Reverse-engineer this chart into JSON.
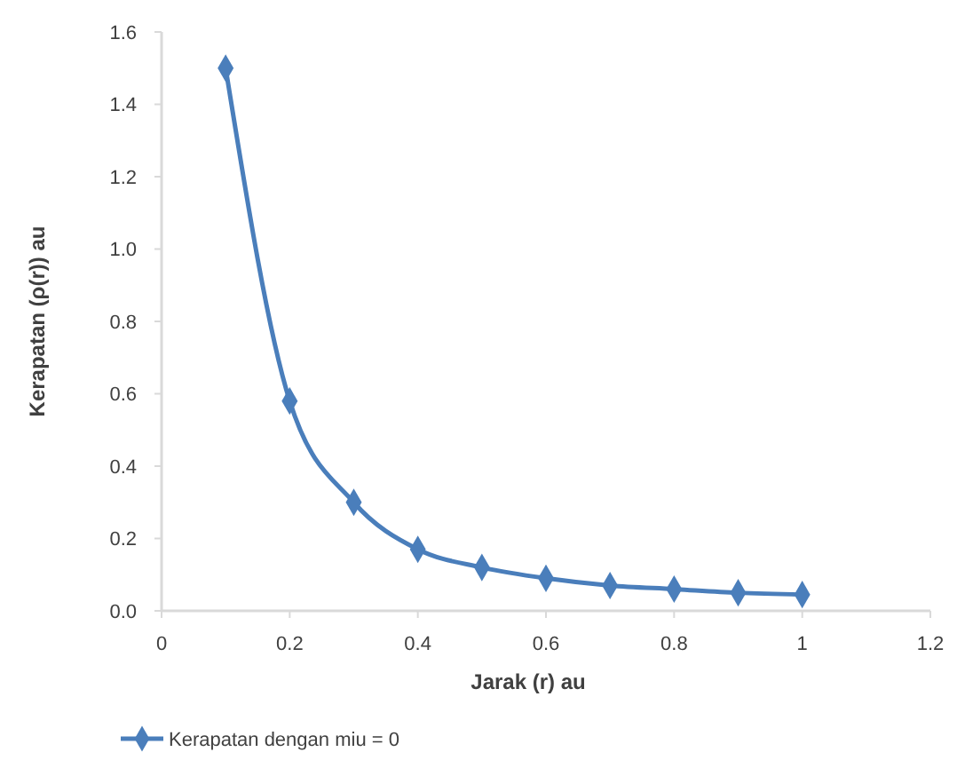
{
  "chart_data": {
    "type": "line",
    "xlabel": "Jarak  (r) au",
    "ylabel": "Kerapatan (ρ(r)) au",
    "x": [
      0.1,
      0.2,
      0.3,
      0.4,
      0.5,
      0.6,
      0.7,
      0.8,
      0.9,
      1.0
    ],
    "series": [
      {
        "name": "Kerapatan dengan miu = 0",
        "color": "#4a7ebb",
        "values": [
          1.5,
          0.58,
          0.3,
          0.17,
          0.12,
          0.09,
          0.07,
          0.06,
          0.05,
          0.045
        ]
      }
    ],
    "xlim": [
      0,
      1.2
    ],
    "xticks": [
      0,
      0.2,
      0.4,
      0.6,
      0.8,
      1,
      1.2
    ],
    "ylim": [
      0,
      1.6
    ],
    "yticks": [
      {
        "value": 0,
        "label": "0.0"
      },
      0.2,
      0.4,
      0.6,
      0.8,
      {
        "value": 1,
        "label": "1.0"
      },
      1.2,
      1.4,
      1.6
    ],
    "marker": "diamond",
    "line_style": "solid",
    "legend": "bottom",
    "grid": false
  }
}
